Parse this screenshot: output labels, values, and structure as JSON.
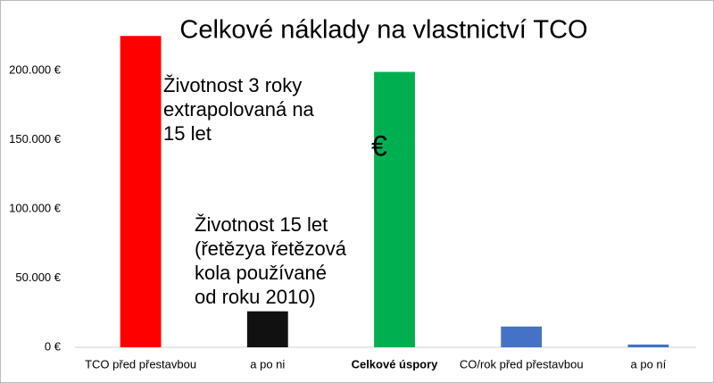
{
  "chart_data": {
    "type": "bar",
    "title": "Celkové náklady na vlastnictví TCO",
    "categories": [
      "TCO před přestavbou",
      "a po ni",
      "Celkové úspory",
      "CO/rok před přestavbou",
      "a po ní"
    ],
    "values": [
      225000,
      26000,
      199000,
      15000,
      2000
    ],
    "colors": [
      "#ff0000",
      "#111111",
      "#00b050",
      "#4472c4",
      "#4472c4"
    ],
    "category_label_colors": [
      "#000000",
      "#000000",
      "#00b050",
      "#000000",
      "#000000"
    ],
    "ylim": [
      0,
      230000
    ],
    "yticks": [
      {
        "value": 0,
        "label": "0 €"
      },
      {
        "value": 50000,
        "label": "50.000 €"
      },
      {
        "value": 100000,
        "label": "100.000 €"
      },
      {
        "value": 150000,
        "label": "150.000 €"
      },
      {
        "value": 200000,
        "label": "200.000 €"
      }
    ],
    "grid": false,
    "annotations": [
      {
        "lines": [
          "Životnost 3 roky",
          "extrapolovaná na",
          "15 let"
        ]
      },
      {
        "lines": [
          "Životnost 15 let",
          "(řetězya řetězová",
          "kola používané",
          "od roku 2010)"
        ]
      },
      {
        "lines": [
          "€"
        ]
      }
    ]
  }
}
